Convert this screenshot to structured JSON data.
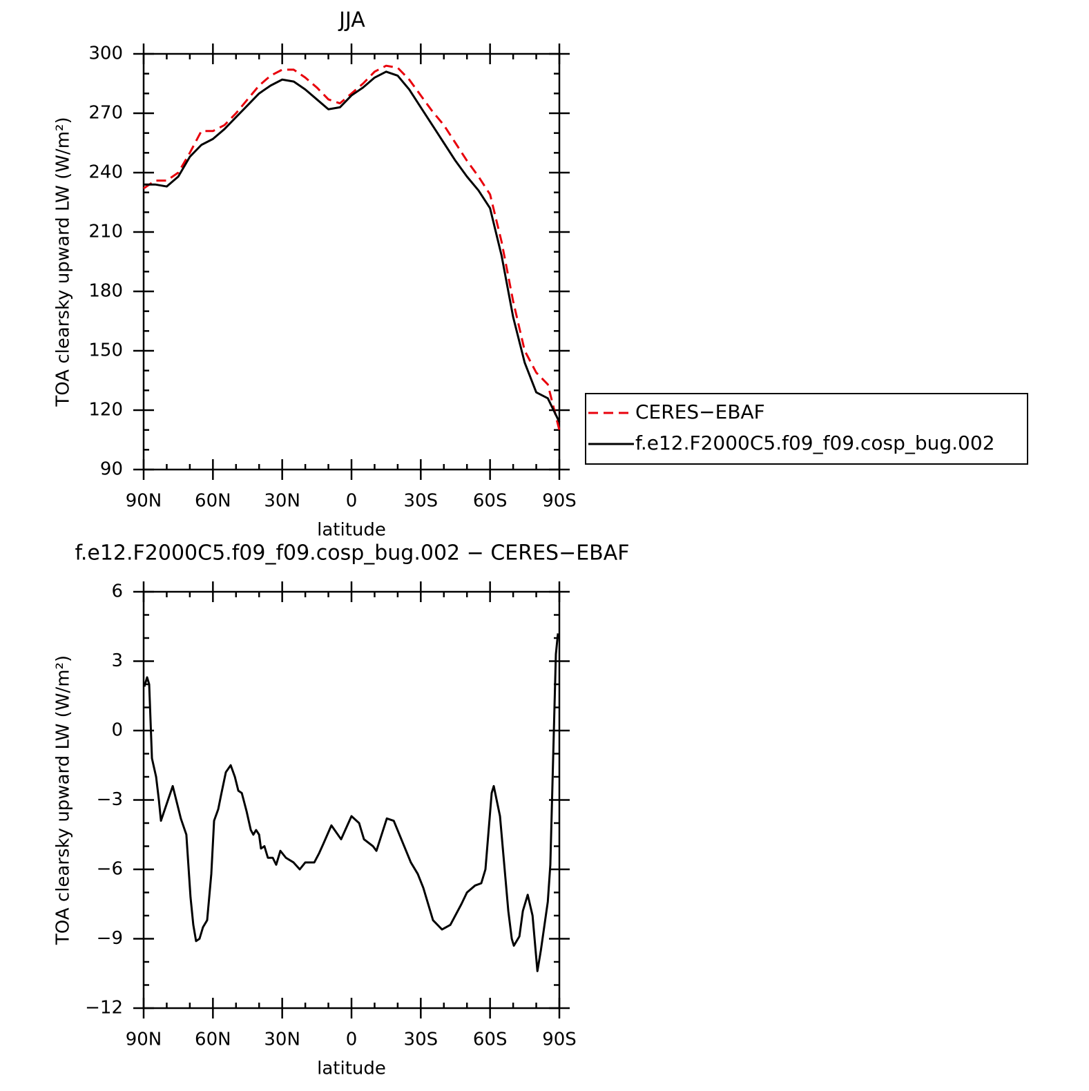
{
  "chart_data": [
    {
      "type": "line",
      "title": "JJA",
      "xlabel": "latitude",
      "ylabel": "TOA clearsky upward LW (W/m²)",
      "x": [
        90,
        85,
        80,
        75,
        70,
        65,
        60,
        55,
        50,
        45,
        40,
        35,
        30,
        25,
        20,
        15,
        10,
        5,
        0,
        -5,
        -10,
        -15,
        -20,
        -25,
        -30,
        -35,
        -40,
        -45,
        -50,
        -55,
        -60,
        -65,
        -70,
        -75,
        -80,
        -85,
        -90
      ],
      "series": [
        {
          "name": "CERES−EBAF",
          "color": "#e8000b",
          "dashed": true,
          "values": [
            232,
            236,
            236,
            240,
            250,
            261,
            261,
            264,
            270,
            277,
            284,
            289,
            292,
            292,
            288,
            283,
            277,
            275,
            280,
            285,
            291,
            294,
            293,
            287,
            279,
            271,
            264,
            255,
            246,
            238,
            229,
            205,
            175,
            150,
            139,
            133,
            110
          ]
        },
        {
          "name": "f.e12.F2000C5.f09_f09.cosp_bug.002",
          "color": "#000000",
          "dashed": false,
          "values": [
            234,
            234,
            233,
            238,
            248,
            254,
            257,
            262,
            268,
            274,
            280,
            284,
            287,
            286,
            282,
            277,
            272,
            273,
            279,
            283,
            288,
            291,
            289,
            282,
            273,
            264,
            255,
            246,
            238,
            231,
            222,
            198,
            167,
            144,
            129,
            126,
            114
          ]
        }
      ],
      "xlim": [
        90,
        -90
      ],
      "xticks": [
        {
          "value": 90,
          "label": "90N"
        },
        {
          "value": 60,
          "label": "60N"
        },
        {
          "value": 30,
          "label": "30N"
        },
        0,
        {
          "value": -30,
          "label": "30S"
        },
        {
          "value": -60,
          "label": "60S"
        },
        {
          "value": -90,
          "label": "90S"
        }
      ],
      "ylim": [
        90,
        300
      ],
      "yticks": [
        90,
        120,
        150,
        180,
        210,
        240,
        270,
        300
      ],
      "legend": "right"
    },
    {
      "type": "line",
      "title": "f.e12.F2000C5.f09_f09.cosp_bug.002 − CERES−EBAF",
      "xlabel": "latitude",
      "ylabel": "TOA clearsky upward LW (W/m²)",
      "x": [
        89.7,
        88.5,
        87.6,
        86.4,
        84.6,
        83.4,
        82.5,
        77.4,
        73.9,
        71.5,
        69.7,
        68.5,
        67.3,
        65.8,
        64.3,
        62.5,
        60.7,
        59.5,
        57.7,
        56.5,
        54.4,
        52.3,
        50.5,
        49,
        47.5,
        45.4,
        43.6,
        42.5,
        41.3,
        40,
        39.2,
        37.7,
        36.2,
        34.1,
        32.6,
        30.8,
        28.4,
        25.1,
        22.4,
        20,
        16.1,
        14,
        12.2,
        8.7,
        4.5,
        0,
        -3.3,
        -5.4,
        -9.3,
        -10.8,
        -15.3,
        -18.3,
        -25.7,
        -28.7,
        -31.1,
        -35.3,
        -39.2,
        -42.8,
        -47.6,
        -50,
        -53.5,
        -56.2,
        -58,
        -60.7,
        -61.6,
        -64.3,
        -67.9,
        -69.4,
        -70.3,
        -72.7,
        -74.2,
        -76.3,
        -78.4,
        -80.5,
        -82,
        -85,
        -86.1,
        -88.5,
        -89.4
      ],
      "series": [
        {
          "color": "#000000",
          "dashed": false,
          "values": [
            1.9,
            2.3,
            2.0,
            -1.2,
            -2.0,
            -3.0,
            -3.9,
            -2.4,
            -3.8,
            -4.5,
            -7.2,
            -8.4,
            -9.1,
            -9.0,
            -8.5,
            -8.2,
            -6.2,
            -3.9,
            -3.4,
            -2.8,
            -1.8,
            -1.5,
            -2.0,
            -2.6,
            -2.7,
            -3.5,
            -4.3,
            -4.5,
            -4.3,
            -4.5,
            -5.1,
            -5.0,
            -5.5,
            -5.5,
            -5.8,
            -5.2,
            -5.5,
            -5.7,
            -6.0,
            -5.7,
            -5.7,
            -5.3,
            -4.9,
            -4.1,
            -4.7,
            -3.7,
            -4.0,
            -4.7,
            -5.0,
            -5.2,
            -3.8,
            -3.9,
            -5.7,
            -6.2,
            -6.8,
            -8.2,
            -8.6,
            -8.4,
            -7.5,
            -7.0,
            -6.7,
            -6.6,
            -6.0,
            -2.7,
            -2.4,
            -3.7,
            -7.8,
            -9.0,
            -9.3,
            -8.9,
            -7.8,
            -7.1,
            -8.0,
            -10.4,
            -9.5,
            -7.4,
            -5.8,
            3.3,
            4.2
          ]
        }
      ],
      "xlim": [
        90,
        -90
      ],
      "xticks": [
        {
          "value": 90,
          "label": "90N"
        },
        {
          "value": 60,
          "label": "60N"
        },
        {
          "value": 30,
          "label": "30N"
        },
        0,
        {
          "value": -30,
          "label": "30S"
        },
        {
          "value": -60,
          "label": "60S"
        },
        {
          "value": -90,
          "label": "90S"
        }
      ],
      "ylim": [
        -12,
        6
      ],
      "yticks": [
        {
          "value": -12,
          "label": "−12"
        },
        {
          "value": -9,
          "label": "−9"
        },
        {
          "value": -6,
          "label": "−6"
        },
        {
          "value": -3,
          "label": "−3"
        },
        0,
        3,
        6
      ]
    }
  ]
}
